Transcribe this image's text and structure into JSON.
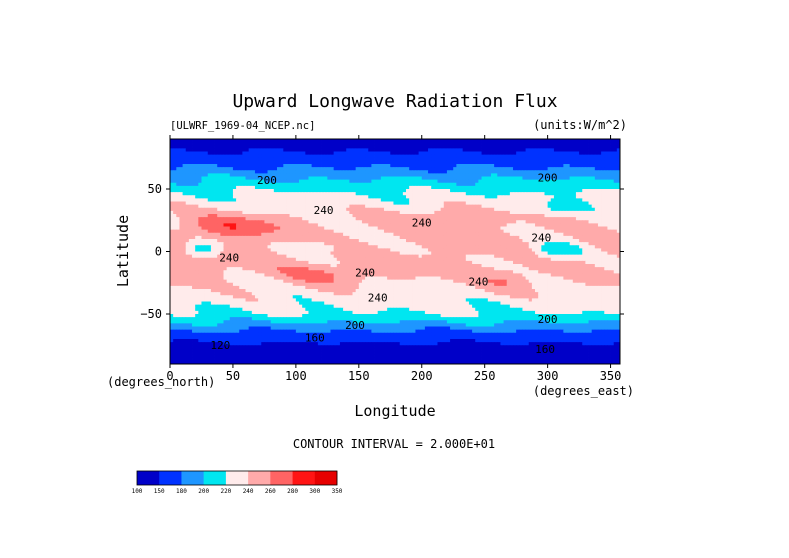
{
  "chart_data": {
    "type": "heatmap",
    "title": "Upward Longwave Radiation Flux",
    "subtitle_left": "[ULWRF_1969-04_NCEP.nc]",
    "subtitle_right": "(units:W/m^2)",
    "xlabel": "Longitude",
    "ylabel": "Latitude",
    "x_units": "(degrees_east)",
    "y_units": "(degrees_north)",
    "xlim": [
      0,
      357.5
    ],
    "ylim": [
      -90,
      90
    ],
    "x_ticks": [
      0,
      50,
      100,
      150,
      200,
      250,
      300,
      350
    ],
    "y_ticks": [
      50,
      0,
      -50
    ],
    "x_tick_labels": [
      "0",
      "50",
      "100",
      "150",
      "200",
      "250",
      "300",
      "350"
    ],
    "y_tick_labels": [
      "50",
      "0",
      "−50"
    ],
    "contour_interval_text": "CONTOUR INTERVAL = 2.000E+01",
    "levels": [
      100,
      150,
      180,
      200,
      220,
      240,
      260,
      280,
      300,
      350
    ],
    "level_labels": [
      "100",
      "150",
      "180",
      "200",
      "220",
      "240",
      "260",
      "280",
      "300",
      "350"
    ],
    "colors": [
      "#0000c8",
      "#0032ff",
      "#1e96ff",
      "#00e6f0",
      "#ffebeb",
      "#ffaaaa",
      "#ff6464",
      "#ff1414",
      "#e60000"
    ],
    "contour_labels": [
      {
        "text": "200",
        "lon": 77,
        "lat": 54
      },
      {
        "text": "240",
        "lon": 122,
        "lat": 30
      },
      {
        "text": "240",
        "lon": 200,
        "lat": 20
      },
      {
        "text": "240",
        "lon": 47,
        "lat": -8
      },
      {
        "text": "240",
        "lon": 295,
        "lat": 8
      },
      {
        "text": "240",
        "lon": 245,
        "lat": -27
      },
      {
        "text": "240",
        "lon": 165,
        "lat": -40
      },
      {
        "text": "240",
        "lon": 155,
        "lat": -20
      },
      {
        "text": "200",
        "lon": 300,
        "lat": 56
      },
      {
        "text": "200",
        "lon": 300,
        "lat": -57
      },
      {
        "text": "200",
        "lon": 147,
        "lat": -62
      },
      {
        "text": "160",
        "lon": 115,
        "lat": -72
      },
      {
        "text": "160",
        "lon": 298,
        "lat": -81
      },
      {
        "text": "120",
        "lon": 40,
        "lat": -78
      }
    ]
  }
}
